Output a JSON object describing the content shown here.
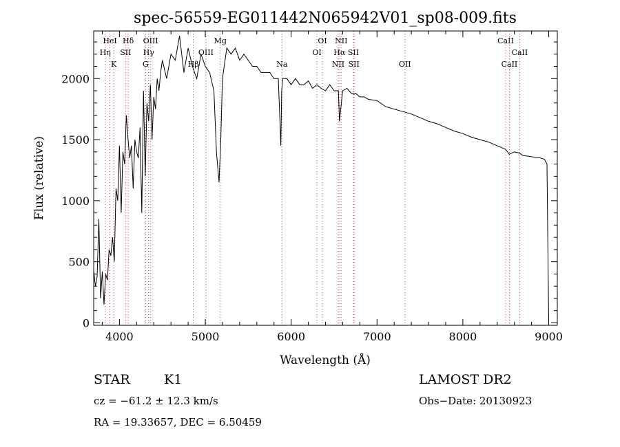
{
  "title": "spec-56559-EG011442N065942V01_sp08-009.fits",
  "chart_data": {
    "type": "line",
    "xlabel": "Wavelength (Å)",
    "ylabel": "Flux (relative)",
    "xlim": [
      3700,
      9100
    ],
    "ylim": [
      -20,
      2390
    ],
    "xticks": [
      4000,
      5000,
      6000,
      7000,
      8000,
      9000
    ],
    "yticks": [
      0,
      500,
      1000,
      1500,
      2000
    ],
    "grid": false,
    "series": [
      {
        "x": [
          3700,
          3720,
          3740,
          3760,
          3780,
          3800,
          3820,
          3840,
          3860,
          3880,
          3900,
          3920,
          3940,
          3960,
          3980,
          4000,
          4020,
          4040,
          4060,
          4080,
          4100,
          4120,
          4140,
          4160,
          4180,
          4200,
          4220,
          4240,
          4260,
          4280,
          4300,
          4320,
          4340,
          4360,
          4380,
          4400,
          4420,
          4440,
          4460,
          4480,
          4500,
          4550,
          4600,
          4650,
          4700,
          4750,
          4800,
          4850,
          4900,
          4950,
          5000,
          5050,
          5100,
          5130,
          5160,
          5180,
          5200,
          5250,
          5300,
          5350,
          5400,
          5450,
          5500,
          5550,
          5600,
          5650,
          5700,
          5750,
          5800,
          5850,
          5880,
          5890,
          5900,
          5950,
          6000,
          6050,
          6100,
          6150,
          6200,
          6250,
          6300,
          6350,
          6400,
          6450,
          6500,
          6550,
          6563,
          6600,
          6650,
          6700,
          6750,
          6800,
          6850,
          6900,
          7000,
          7100,
          7200,
          7300,
          7400,
          7500,
          7600,
          7700,
          7800,
          7900,
          8000,
          8100,
          8200,
          8300,
          8400,
          8500,
          8540,
          8600,
          8660,
          8700,
          8800,
          8900,
          8950,
          8980,
          9000
        ],
        "y": [
          430,
          300,
          380,
          850,
          200,
          420,
          150,
          400,
          350,
          600,
          550,
          700,
          500,
          1100,
          1000,
          1450,
          900,
          1400,
          1300,
          1700,
          1500,
          1350,
          1450,
          1100,
          1500,
          1400,
          1350,
          1600,
          900,
          1900,
          1200,
          1800,
          1650,
          1950,
          1500,
          1850,
          1750,
          2000,
          1900,
          2050,
          2150,
          2000,
          2200,
          2150,
          2350,
          2050,
          2250,
          2100,
          2000,
          2200,
          2100,
          2050,
          1900,
          1400,
          1150,
          1500,
          2000,
          2250,
          2200,
          2250,
          2150,
          2200,
          2150,
          2100,
          2100,
          2050,
          2050,
          2050,
          2000,
          2000,
          1450,
          1900,
          2000,
          2000,
          1950,
          2000,
          1950,
          1950,
          1980,
          1920,
          1950,
          1920,
          1900,
          1950,
          1900,
          1900,
          1650,
          1900,
          1920,
          1880,
          1880,
          1850,
          1850,
          1830,
          1820,
          1770,
          1750,
          1730,
          1710,
          1680,
          1650,
          1630,
          1600,
          1570,
          1550,
          1520,
          1500,
          1480,
          1450,
          1420,
          1380,
          1400,
          1390,
          1370,
          1360,
          1350,
          1340,
          1300,
          0
        ]
      }
    ],
    "lines": [
      {
        "label": "HeI",
        "x": 3889,
        "row": 0
      },
      {
        "label": "Hη",
        "x": 3835,
        "row": 1
      },
      {
        "label": "K",
        "x": 3934,
        "row": 2
      },
      {
        "label": "Hδ",
        "x": 4102,
        "row": 0
      },
      {
        "label": "SII",
        "x": 4072,
        "row": 1
      },
      {
        "label": "OIII",
        "x": 4363,
        "row": 0
      },
      {
        "label": "Hγ",
        "x": 4340,
        "row": 1
      },
      {
        "label": "G",
        "x": 4305,
        "row": 2
      },
      {
        "label": "Hβ",
        "x": 4861,
        "row": 2
      },
      {
        "label": "OIII",
        "x": 5007,
        "row": 1
      },
      {
        "label": "Mg",
        "x": 5175,
        "row": 0
      },
      {
        "label": "Na",
        "x": 5893,
        "row": 2
      },
      {
        "label": "OI",
        "x": 6364,
        "row": 0
      },
      {
        "label": "OI",
        "x": 6300,
        "row": 1
      },
      {
        "label": "NII",
        "x": 6583,
        "row": 0
      },
      {
        "label": "Hα",
        "x": 6563,
        "row": 1
      },
      {
        "label": "SII",
        "x": 6725,
        "row": 1
      },
      {
        "label": "NII",
        "x": 6548,
        "row": 2
      },
      {
        "label": "SII",
        "x": 6731,
        "row": 2
      },
      {
        "label": "OII",
        "x": 7325,
        "row": 2
      },
      {
        "label": "CaII",
        "x": 8498,
        "row": 0
      },
      {
        "label": "CaII",
        "x": 8662,
        "row": 1
      },
      {
        "label": "CaII",
        "x": 8542,
        "row": 2
      }
    ]
  },
  "info": {
    "class": "STAR",
    "subclass": "K1",
    "survey": "LAMOST DR2",
    "cz": "cz = −61.2 ± 12.3 km/s",
    "obs_date": "Obs−Date: 20130923",
    "radec": "RA =  19.33657, DEC =   6.50459"
  }
}
